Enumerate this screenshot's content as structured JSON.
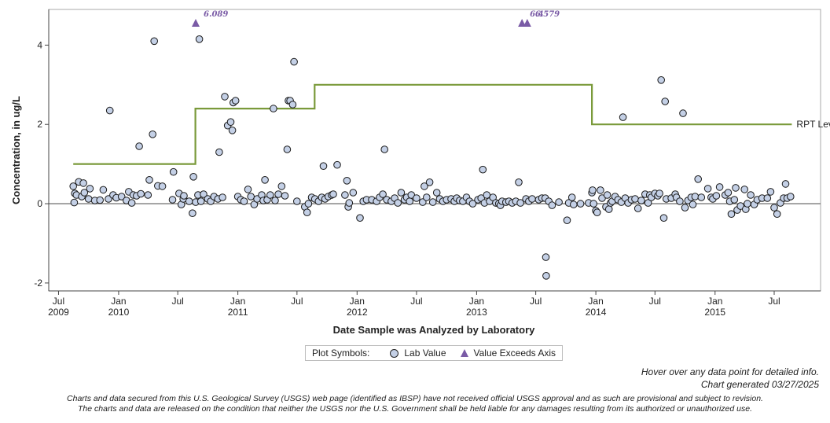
{
  "chart_data": {
    "type": "scatter",
    "title": "",
    "xlabel": "Date Sample was Analyzed by Laboratory",
    "ylabel": "Concentration, in ug/L",
    "xlim": [
      "2009-06-01",
      "2015-11-20"
    ],
    "ylim": [
      -2.2,
      4.9
    ],
    "yticks": [
      -2,
      0,
      2,
      4
    ],
    "xticks": [
      {
        "date": "2009-07-01",
        "label": "Jul",
        "year": "2009"
      },
      {
        "date": "2010-01-01",
        "label": "Jan",
        "year": "2010"
      },
      {
        "date": "2010-07-01",
        "label": "Jul",
        "year": ""
      },
      {
        "date": "2011-01-01",
        "label": "Jan",
        "year": "2011"
      },
      {
        "date": "2011-07-01",
        "label": "Jul",
        "year": ""
      },
      {
        "date": "2012-01-01",
        "label": "Jan",
        "year": "2012"
      },
      {
        "date": "2012-07-01",
        "label": "Jul",
        "year": ""
      },
      {
        "date": "2013-01-01",
        "label": "Jan",
        "year": "2013"
      },
      {
        "date": "2013-07-01",
        "label": "Jul",
        "year": ""
      },
      {
        "date": "2014-01-01",
        "label": "Jan",
        "year": "2014"
      },
      {
        "date": "2014-07-01",
        "label": "Jul",
        "year": ""
      },
      {
        "date": "2015-01-01",
        "label": "Jan",
        "year": "2015"
      },
      {
        "date": "2015-07-01",
        "label": "Jul",
        "year": ""
      }
    ],
    "grid": false,
    "zero_line": true,
    "rpt_level": {
      "name": "RPT Level",
      "color": "#7a9a3a",
      "steps": [
        {
          "from": "2009-08-15",
          "to": "2010-08-24",
          "value": 1
        },
        {
          "from": "2010-08-24",
          "to": "2011-08-24",
          "value": 2.4
        },
        {
          "from": "2011-08-24",
          "to": "2013-12-20",
          "value": 3
        },
        {
          "from": "2013-12-20",
          "to": "2015-08-24",
          "value": 2
        }
      ]
    },
    "series": [
      {
        "name": "Lab Value",
        "color": "#c4d0e6",
        "points": [
          [
            "2009-08-15",
            0.44
          ],
          [
            "2009-08-18",
            0.03
          ],
          [
            "2009-08-20",
            0.26
          ],
          [
            "2009-08-25",
            0.22
          ],
          [
            "2009-09-01",
            0.55
          ],
          [
            "2009-09-10",
            0.18
          ],
          [
            "2009-09-15",
            0.52
          ],
          [
            "2009-09-18",
            0.28
          ],
          [
            "2009-10-01",
            0.12
          ],
          [
            "2009-10-05",
            0.38
          ],
          [
            "2009-10-20",
            0.08
          ],
          [
            "2009-11-05",
            0.09
          ],
          [
            "2009-11-15",
            0.35
          ],
          [
            "2009-12-01",
            0.12
          ],
          [
            "2009-12-05",
            2.35
          ],
          [
            "2009-12-15",
            0.22
          ],
          [
            "2009-12-25",
            0.15
          ],
          [
            "2010-01-10",
            0.18
          ],
          [
            "2010-01-25",
            0.08
          ],
          [
            "2010-02-01",
            0.3
          ],
          [
            "2010-02-10",
            0.02
          ],
          [
            "2010-02-15",
            0.22
          ],
          [
            "2010-02-25",
            0.2
          ],
          [
            "2010-03-05",
            1.45
          ],
          [
            "2010-03-10",
            0.25
          ],
          [
            "2010-04-01",
            0.22
          ],
          [
            "2010-04-05",
            0.6
          ],
          [
            "2010-04-15",
            1.75
          ],
          [
            "2010-04-20",
            4.1
          ],
          [
            "2010-05-01",
            0.45
          ],
          [
            "2010-05-15",
            0.44
          ],
          [
            "2010-06-15",
            0.1
          ],
          [
            "2010-06-18",
            0.8
          ],
          [
            "2010-07-05",
            0.26
          ],
          [
            "2010-07-12",
            -0.02
          ],
          [
            "2010-07-18",
            0.12
          ],
          [
            "2010-07-20",
            0.2
          ],
          [
            "2010-08-05",
            0.06
          ],
          [
            "2010-08-15",
            -0.24
          ],
          [
            "2010-08-18",
            0.68
          ],
          [
            "2010-08-25",
            0.04
          ],
          [
            "2010-09-01",
            0.22
          ],
          [
            "2010-09-05",
            4.15
          ],
          [
            "2010-09-10",
            0.06
          ],
          [
            "2010-09-18",
            0.24
          ],
          [
            "2010-10-01",
            0.12
          ],
          [
            "2010-10-10",
            0.06
          ],
          [
            "2010-10-20",
            0.18
          ],
          [
            "2010-11-01",
            0.12
          ],
          [
            "2010-11-05",
            1.3
          ],
          [
            "2010-11-15",
            0.16
          ],
          [
            "2010-11-22",
            2.7
          ],
          [
            "2010-12-01",
            1.97
          ],
          [
            "2010-12-10",
            2.06
          ],
          [
            "2010-12-15",
            1.85
          ],
          [
            "2010-12-18",
            2.55
          ],
          [
            "2010-12-25",
            2.6
          ],
          [
            "2011-01-01",
            0.18
          ],
          [
            "2011-01-10",
            0.1
          ],
          [
            "2011-01-20",
            0.06
          ],
          [
            "2011-02-01",
            0.36
          ],
          [
            "2011-02-10",
            0.18
          ],
          [
            "2011-02-20",
            -0.02
          ],
          [
            "2011-03-01",
            0.12
          ],
          [
            "2011-03-15",
            0.22
          ],
          [
            "2011-03-20",
            0.08
          ],
          [
            "2011-03-25",
            0.6
          ],
          [
            "2011-04-01",
            0.1
          ],
          [
            "2011-04-10",
            0.22
          ],
          [
            "2011-04-20",
            2.4
          ],
          [
            "2011-04-25",
            0.08
          ],
          [
            "2011-05-05",
            0.24
          ],
          [
            "2011-05-15",
            0.44
          ],
          [
            "2011-05-25",
            0.2
          ],
          [
            "2011-06-01",
            1.37
          ],
          [
            "2011-06-05",
            2.6
          ],
          [
            "2011-06-10",
            2.6
          ],
          [
            "2011-06-18",
            2.5
          ],
          [
            "2011-06-22",
            3.58
          ],
          [
            "2011-07-01",
            0.06
          ],
          [
            "2011-07-25",
            -0.08
          ],
          [
            "2011-08-01",
            -0.22
          ],
          [
            "2011-08-05",
            0.0
          ],
          [
            "2011-08-15",
            0.16
          ],
          [
            "2011-08-25",
            0.12
          ],
          [
            "2011-09-05",
            0.06
          ],
          [
            "2011-09-15",
            0.16
          ],
          [
            "2011-09-20",
            0.95
          ],
          [
            "2011-09-25",
            0.12
          ],
          [
            "2011-10-05",
            0.18
          ],
          [
            "2011-10-15",
            0.22
          ],
          [
            "2011-10-20",
            0.24
          ],
          [
            "2011-11-01",
            0.98
          ],
          [
            "2011-11-25",
            0.22
          ],
          [
            "2011-12-01",
            0.58
          ],
          [
            "2011-12-05",
            -0.08
          ],
          [
            "2011-12-08",
            0.02
          ],
          [
            "2011-12-20",
            0.28
          ],
          [
            "2012-01-10",
            -0.36
          ],
          [
            "2012-01-20",
            0.06
          ],
          [
            "2012-01-30",
            0.1
          ],
          [
            "2012-02-15",
            0.1
          ],
          [
            "2012-03-01",
            0.06
          ],
          [
            "2012-03-10",
            0.16
          ],
          [
            "2012-03-20",
            0.24
          ],
          [
            "2012-03-25",
            1.37
          ],
          [
            "2012-04-01",
            0.1
          ],
          [
            "2012-04-15",
            0.06
          ],
          [
            "2012-04-25",
            0.14
          ],
          [
            "2012-05-05",
            0.02
          ],
          [
            "2012-05-15",
            0.28
          ],
          [
            "2012-05-25",
            0.1
          ],
          [
            "2012-06-01",
            0.16
          ],
          [
            "2012-06-10",
            0.06
          ],
          [
            "2012-06-15",
            0.22
          ],
          [
            "2012-07-01",
            0.14
          ],
          [
            "2012-07-20",
            0.04
          ],
          [
            "2012-07-25",
            0.44
          ],
          [
            "2012-08-01",
            0.16
          ],
          [
            "2012-08-10",
            0.54
          ],
          [
            "2012-08-20",
            0.04
          ],
          [
            "2012-09-01",
            0.28
          ],
          [
            "2012-09-10",
            0.12
          ],
          [
            "2012-09-20",
            0.06
          ],
          [
            "2012-10-01",
            0.1
          ],
          [
            "2012-10-15",
            0.12
          ],
          [
            "2012-10-25",
            0.06
          ],
          [
            "2012-11-01",
            0.14
          ],
          [
            "2012-11-10",
            0.08
          ],
          [
            "2012-11-20",
            0.06
          ],
          [
            "2012-12-01",
            0.16
          ],
          [
            "2012-12-10",
            0.06
          ],
          [
            "2012-12-20",
            0.0
          ],
          [
            "2013-01-05",
            0.1
          ],
          [
            "2013-01-15",
            0.14
          ],
          [
            "2013-01-20",
            0.86
          ],
          [
            "2013-01-25",
            0.02
          ],
          [
            "2013-02-01",
            0.22
          ],
          [
            "2013-02-10",
            0.06
          ],
          [
            "2013-02-20",
            0.16
          ],
          [
            "2013-03-01",
            0.02
          ],
          [
            "2013-03-10",
            0.0
          ],
          [
            "2013-03-15",
            -0.04
          ],
          [
            "2013-03-20",
            0.06
          ],
          [
            "2013-04-01",
            0.04
          ],
          [
            "2013-04-10",
            0.06
          ],
          [
            "2013-04-20",
            0.02
          ],
          [
            "2013-05-01",
            0.06
          ],
          [
            "2013-05-10",
            0.54
          ],
          [
            "2013-05-15",
            0.02
          ],
          [
            "2013-06-01",
            0.12
          ],
          [
            "2013-06-10",
            0.06
          ],
          [
            "2013-06-20",
            0.12
          ],
          [
            "2013-07-10",
            0.1
          ],
          [
            "2013-07-20",
            0.14
          ],
          [
            "2013-07-30",
            0.14
          ],
          [
            "2013-08-01",
            -1.35
          ],
          [
            "2013-08-02",
            -1.82
          ],
          [
            "2013-08-10",
            0.06
          ],
          [
            "2013-08-20",
            -0.04
          ],
          [
            "2013-09-10",
            0.04
          ],
          [
            "2013-10-05",
            -0.42
          ],
          [
            "2013-10-10",
            0.02
          ],
          [
            "2013-10-20",
            0.16
          ],
          [
            "2013-10-25",
            -0.02
          ],
          [
            "2013-11-15",
            0.0
          ],
          [
            "2013-12-10",
            0.02
          ],
          [
            "2013-12-20",
            0.28
          ],
          [
            "2013-12-22",
            0.34
          ],
          [
            "2013-12-25",
            0.0
          ],
          [
            "2014-01-01",
            -0.18
          ],
          [
            "2014-01-05",
            -0.22
          ],
          [
            "2014-01-15",
            0.34
          ],
          [
            "2014-01-20",
            0.14
          ],
          [
            "2014-02-01",
            -0.08
          ],
          [
            "2014-02-05",
            0.22
          ],
          [
            "2014-02-10",
            -0.14
          ],
          [
            "2014-02-15",
            0.02
          ],
          [
            "2014-02-20",
            0.06
          ],
          [
            "2014-03-01",
            0.18
          ],
          [
            "2014-03-10",
            0.1
          ],
          [
            "2014-03-20",
            0.04
          ],
          [
            "2014-03-25",
            2.18
          ],
          [
            "2014-04-01",
            0.14
          ],
          [
            "2014-04-10",
            0.02
          ],
          [
            "2014-04-20",
            0.1
          ],
          [
            "2014-05-01",
            0.12
          ],
          [
            "2014-05-10",
            -0.12
          ],
          [
            "2014-05-20",
            0.08
          ],
          [
            "2014-06-01",
            0.24
          ],
          [
            "2014-06-10",
            0.02
          ],
          [
            "2014-06-15",
            0.22
          ],
          [
            "2014-06-20",
            0.16
          ],
          [
            "2014-07-01",
            0.26
          ],
          [
            "2014-07-10",
            0.2
          ],
          [
            "2014-07-15",
            0.26
          ],
          [
            "2014-07-20",
            3.12
          ],
          [
            "2014-07-28",
            -0.36
          ],
          [
            "2014-08-01",
            2.58
          ],
          [
            "2014-08-05",
            0.12
          ],
          [
            "2014-08-20",
            0.14
          ],
          [
            "2014-09-01",
            0.24
          ],
          [
            "2014-09-05",
            0.16
          ],
          [
            "2014-09-15",
            0.06
          ],
          [
            "2014-09-25",
            2.28
          ],
          [
            "2014-10-01",
            -0.1
          ],
          [
            "2014-10-10",
            0.08
          ],
          [
            "2014-10-20",
            0.16
          ],
          [
            "2014-10-25",
            -0.02
          ],
          [
            "2014-11-01",
            0.18
          ],
          [
            "2014-11-10",
            0.62
          ],
          [
            "2014-11-20",
            0.16
          ],
          [
            "2014-12-10",
            0.38
          ],
          [
            "2014-12-20",
            0.16
          ],
          [
            "2014-12-25",
            0.12
          ],
          [
            "2015-01-05",
            0.2
          ],
          [
            "2015-01-15",
            0.42
          ],
          [
            "2015-02-01",
            0.22
          ],
          [
            "2015-02-10",
            0.28
          ],
          [
            "2015-02-15",
            0.06
          ],
          [
            "2015-02-20",
            -0.26
          ],
          [
            "2015-03-01",
            0.1
          ],
          [
            "2015-03-05",
            0.4
          ],
          [
            "2015-03-10",
            -0.16
          ],
          [
            "2015-03-20",
            -0.06
          ],
          [
            "2015-04-01",
            0.36
          ],
          [
            "2015-04-05",
            -0.14
          ],
          [
            "2015-04-10",
            0.0
          ],
          [
            "2015-04-20",
            0.22
          ],
          [
            "2015-05-01",
            -0.02
          ],
          [
            "2015-05-10",
            0.1
          ],
          [
            "2015-05-25",
            0.14
          ],
          [
            "2015-06-10",
            0.14
          ],
          [
            "2015-06-20",
            0.3
          ],
          [
            "2015-07-01",
            -0.1
          ],
          [
            "2015-07-10",
            -0.26
          ],
          [
            "2015-07-20",
            0.02
          ],
          [
            "2015-07-30",
            0.14
          ],
          [
            "2015-08-05",
            0.5
          ],
          [
            "2015-08-10",
            0.14
          ],
          [
            "2015-08-20",
            0.18
          ]
        ]
      },
      {
        "name": "Value Exceeds Axis",
        "color": "#7a5ba6",
        "points": [
          {
            "date": "2010-08-25",
            "label": "6.089"
          },
          {
            "date": "2013-05-20",
            "label": "6.4"
          },
          {
            "date": "2013-06-05",
            "label": "6.579"
          }
        ]
      }
    ],
    "legend": {
      "title": "Plot Symbols:",
      "placement": "bottom",
      "items": [
        "Lab Value",
        "Value Exceeds Axis"
      ]
    }
  },
  "notes": {
    "hover": "Hover over any data point for detailed info.",
    "generated": "Chart generated 03/27/2025"
  },
  "disclaimer": {
    "line1": "Charts and data secured from this U.S. Geological Survey (USGS) web page (identified as IBSP) have not received official USGS approval and as such are provisional and subject to revision.",
    "line2": "The charts and data are released on the condition that neither the USGS nor the U.S. Government shall be held liable for any damages resulting from its authorized or unauthorized use."
  }
}
